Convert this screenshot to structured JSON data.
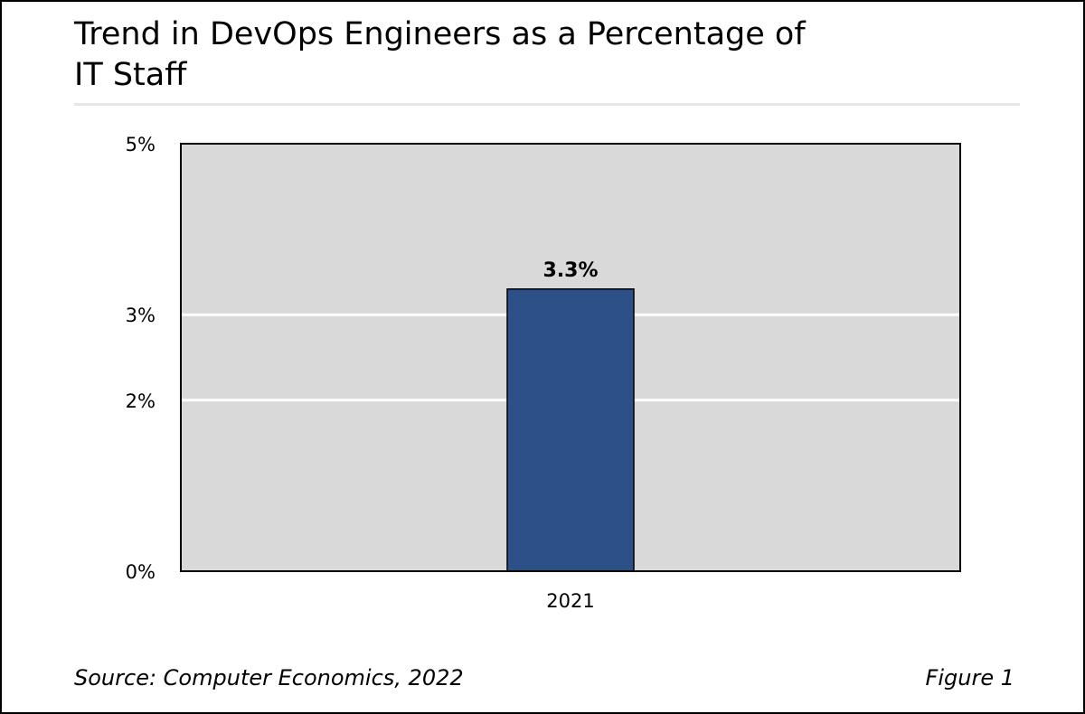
{
  "header": {
    "title_line1": "Trend in DevOps Engineers as a Percentage of",
    "title_line2": "IT Staff"
  },
  "footer": {
    "source": "Source: Computer Economics, 2022",
    "figure": "Figure 1"
  },
  "colors": {
    "bar": "#2d5089",
    "plot_background": "#d9d9d9",
    "gridline": "#ffffff"
  },
  "chart_data": {
    "type": "bar",
    "categories": [
      "2021"
    ],
    "values": [
      3.3
    ],
    "data_labels": [
      "3.3%"
    ],
    "title": "Trend in DevOps Engineers as a Percentage of IT Staff",
    "xlabel": "",
    "ylabel": "",
    "y_ticks": [
      0,
      2,
      3,
      5
    ],
    "y_tick_labels": [
      "0%",
      "2%",
      "3%",
      "5%"
    ],
    "ylim": [
      0,
      5
    ],
    "grid": true,
    "legend": "none"
  }
}
